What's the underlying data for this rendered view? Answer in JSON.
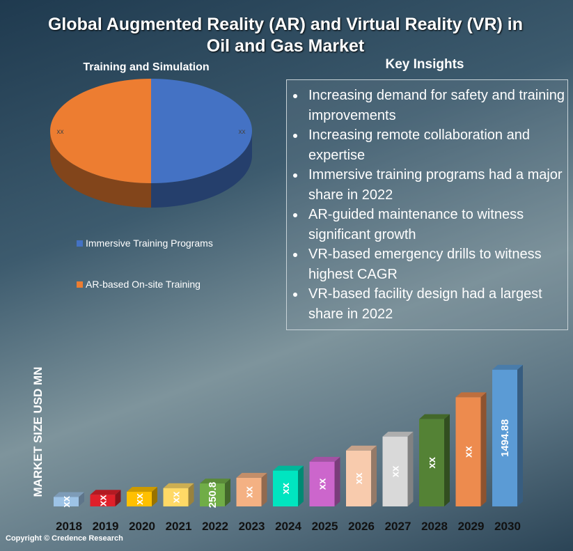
{
  "title": "Global Augmented Reality (AR) and Virtual Reality (VR) in Oil and Gas Market",
  "key_insights": {
    "title": "Key Insights",
    "items": [
      "Increasing demand for safety and training improvements",
      "Increasing remote collaboration and expertise",
      "Immersive training programs had a major share in 2022",
      "AR-guided maintenance to witness significant growth",
      "VR-based emergency drills to witness highest CAGR",
      "VR-based facility design had a largest share in 2022"
    ]
  },
  "copyright": "Copyright © Credence Research",
  "chart_data": [
    {
      "type": "pie",
      "title": "Training and Simulation",
      "categories": [
        "Immersive Training Programs",
        "AR-based On-site Training"
      ],
      "values": [
        50,
        50
      ],
      "value_labels": [
        "xx",
        "xx"
      ],
      "colors": [
        "#4472c4",
        "#ed7d31"
      ]
    },
    {
      "type": "bar",
      "y_label": "MARKET SIZE USD MN",
      "categories": [
        "2018",
        "2019",
        "2020",
        "2021",
        "2022",
        "2023",
        "2024",
        "2025",
        "2026",
        "2027",
        "2028",
        "2029",
        "2030"
      ],
      "values": [
        103,
        128,
        160,
        200,
        250.8,
        313,
        391,
        489,
        611,
        764,
        955,
        1194,
        1494.88
      ],
      "value_labels": [
        "xx",
        "xx",
        "xx",
        "xx",
        "250.8",
        "xx",
        "xx",
        "xx",
        "xx",
        "xx",
        "xx",
        "xx",
        "1494.88"
      ],
      "colors": [
        "#9dc3e6",
        "#e0202a",
        "#ffc000",
        "#ffd966",
        "#70ad47",
        "#f4b183",
        "#00e5c0",
        "#cc66cc",
        "#f8cbad",
        "#d9d9d9",
        "#548235",
        "#ed8b4e",
        "#5b9bd5"
      ],
      "ylim": [
        0,
        1600
      ]
    }
  ]
}
